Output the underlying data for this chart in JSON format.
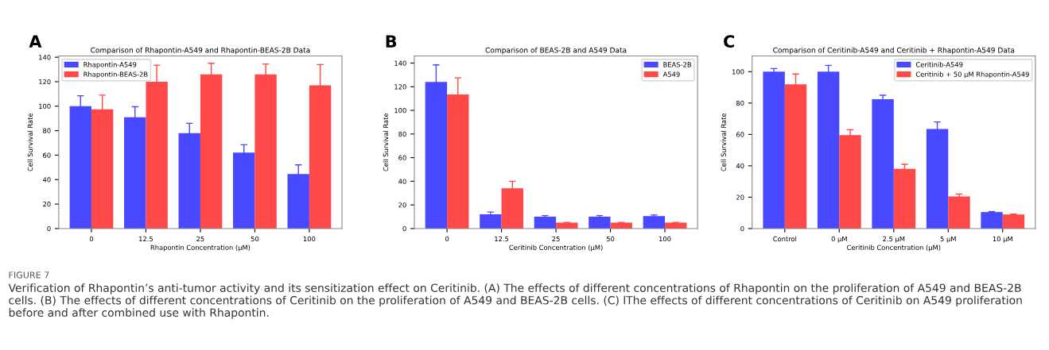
{
  "chart_data": [
    {
      "type": "bar",
      "title": "Comparison of Rhapontin-A549 and Rhapontin-BEAS-2B Data",
      "xlabel": "Rhapontin Concentration (μM)",
      "ylabel": "Cell Survival Rate",
      "categories": [
        "0",
        "12.5",
        "25",
        "50",
        "100"
      ],
      "series": [
        {
          "name": "Rhapontin-A549",
          "color": "#4848ff",
          "values": [
            100,
            91,
            78,
            62,
            44.5
          ],
          "errors": [
            8.5,
            8.5,
            8,
            6.5,
            7.5
          ]
        },
        {
          "name": "Rhapontin-BEAS-2B",
          "color": "#ff4848",
          "values": [
            97.5,
            120,
            126,
            126,
            117
          ],
          "errors": [
            11.5,
            13.5,
            9,
            8.5,
            17
          ]
        }
      ],
      "ylim": [
        0,
        141
      ],
      "yticks": [
        0,
        20,
        40,
        60,
        80,
        100,
        120,
        140
      ],
      "legend": "top left",
      "grid": false,
      "annotations": [
        "A",
        "FIGURE 7",
        "Verification of Rhapontin’s anti-tumor activity and its sensitization effect on Ceritinib. (A) The effects of different concentrations of Rhapontin on the proliferation of A549 and BEAS-2B cells. (B) The effects of different concentrations of Ceritinib on the proliferation of A549 and BEAS-2B cells. (C) lThe effects of different concentrations of Ceritinib on A549 proliferation before and after combined use with Rhapontin."
      ]
    },
    {
      "type": "bar",
      "title": "Comparison of BEAS-2B and A549 Data",
      "xlabel": "Ceritinib Concentration (μM)",
      "ylabel": "Cell Survival Rate",
      "categories": [
        "0",
        "12.5",
        "25",
        "50",
        "100"
      ],
      "series": [
        {
          "name": "BEAS-2B",
          "color": "#4848ff",
          "values": [
            124,
            12,
            10,
            10,
            10.5
          ],
          "errors": [
            14.5,
            2,
            1,
            1,
            1
          ]
        },
        {
          "name": "A549",
          "color": "#ff4848",
          "values": [
            113.5,
            34,
            5,
            5,
            5
          ],
          "errors": [
            14,
            6,
            0.3,
            0.3,
            0.3
          ]
        }
      ],
      "ylim": [
        0,
        146
      ],
      "yticks": [
        0,
        20,
        40,
        60,
        80,
        100,
        120,
        140
      ],
      "legend": "top right",
      "grid": false,
      "annotations": [
        "B"
      ]
    },
    {
      "type": "bar",
      "title": "Comparison of Ceritinib-A549 and Ceritinib + Rhapontin-A549 Data",
      "xlabel": "Ceritinib Concentration (μM)",
      "ylabel": "Cell Survival Rate",
      "categories": [
        "Control",
        "0 μM",
        "2.5 μM",
        "5 μM",
        "10 μM"
      ],
      "series": [
        {
          "name": "Ceritinib-A549",
          "color": "#4848ff",
          "values": [
            100,
            100,
            82.5,
            63.5,
            10.5
          ],
          "errors": [
            2,
            4,
            2.5,
            4.5,
            0.3
          ]
        },
        {
          "name": "Ceritinib + 50 μM Rhapontin-A549",
          "color": "#ff4848",
          "values": [
            92,
            59.5,
            38,
            20.5,
            9
          ],
          "errors": [
            6.5,
            3.5,
            3,
            1.5,
            0.3
          ]
        }
      ],
      "ylim": [
        0,
        110
      ],
      "yticks": [
        0,
        20,
        40,
        60,
        80,
        100
      ],
      "legend": "top right",
      "grid": false,
      "annotations": [
        "C"
      ]
    }
  ]
}
